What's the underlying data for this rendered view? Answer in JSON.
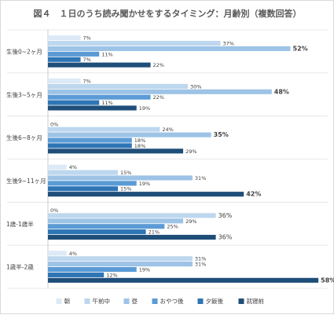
{
  "chart_data": {
    "type": "bar",
    "orientation": "horizontal",
    "title": "図４　１日のうち読み聞かせをするタイミング：月齢別（複数回答）",
    "categories": [
      "生後0~2ヶ月",
      "生後3~5ヶ月",
      "生後6~8ヶ月",
      "生後9~11ヶ月",
      "1歳-1歳半",
      "1歳半-2歳"
    ],
    "series": [
      {
        "name": "朝",
        "color": "#dce9f6",
        "values": [
          7,
          7,
          0,
          4,
          0,
          4
        ]
      },
      {
        "name": "午前中",
        "color": "#bdd7ee",
        "values": [
          37,
          30,
          24,
          15,
          36,
          31
        ]
      },
      {
        "name": "昼",
        "color": "#9dc3e6",
        "values": [
          52,
          48,
          35,
          31,
          29,
          31
        ]
      },
      {
        "name": "おやつ後",
        "color": "#5b9bd5",
        "values": [
          11,
          22,
          18,
          19,
          25,
          19
        ]
      },
      {
        "name": "夕飯後",
        "color": "#2e75b6",
        "values": [
          7,
          11,
          18,
          15,
          21,
          12
        ]
      },
      {
        "name": "就寝前",
        "color": "#1f4e79",
        "values": [
          22,
          19,
          29,
          42,
          36,
          58
        ]
      }
    ],
    "highlight_color": "#e84a8a",
    "highlights": [
      {
        "category": 0,
        "series": 2
      },
      {
        "category": 1,
        "series": 2
      },
      {
        "category": 2,
        "series": 2
      },
      {
        "category": 3,
        "series": 5
      },
      {
        "category": 5,
        "series": 5
      }
    ],
    "large_labels": [
      {
        "category": 4,
        "series": 1
      },
      {
        "category": 4,
        "series": 5
      }
    ],
    "value_suffix": "%",
    "xlim": [
      0,
      60
    ],
    "legend_position": "bottom"
  }
}
